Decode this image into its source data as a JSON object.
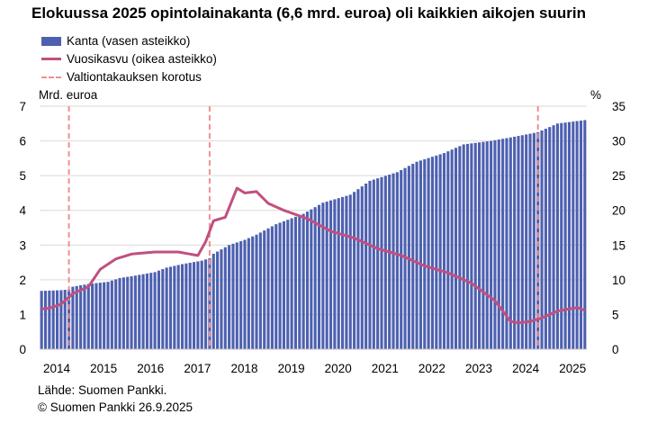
{
  "title": "Elokuussa 2025 opintolainakanta (6,6 mrd. euroa) oli kaikkien aikojen suurin",
  "legend": {
    "bars": "Kanta (vasen asteikko)",
    "line": "Vuosikasvu (oikea asteikko)",
    "dashed": "Valtiontakauksen korotus"
  },
  "left_axis_unit": "Mrd. euroa",
  "right_axis_unit": "%",
  "source": "Lähde: Suomen Pankki.",
  "copyright": "© Suomen Pankki 26.9.2025",
  "colors": {
    "bars": "#4d60b0",
    "line": "#c05080",
    "dashed": "#f09090",
    "grid": "#d9d9d9"
  },
  "chart_data": {
    "type": "bar",
    "x_start": "2014-01",
    "x_end": "2025-08",
    "x_ticks": [
      "2014",
      "2015",
      "2016",
      "2017",
      "2018",
      "2019",
      "2020",
      "2021",
      "2022",
      "2023",
      "2024",
      "2025"
    ],
    "y_left_ticks": [
      "0",
      "1",
      "2",
      "3",
      "4",
      "5",
      "6",
      "7"
    ],
    "y_right_ticks": [
      "0",
      "5",
      "10",
      "15",
      "20",
      "25",
      "30",
      "35"
    ],
    "ylim_left": [
      0,
      7
    ],
    "ylim_right": [
      0,
      35
    ],
    "grid": true,
    "series": [
      {
        "name": "Kanta (vasen asteikko)",
        "kind": "bar",
        "axis": "left",
        "anchors": [
          [
            "2014-01",
            1.68
          ],
          [
            "2014-06",
            1.7
          ],
          [
            "2014-08",
            1.72
          ],
          [
            "2014-09",
            1.8
          ],
          [
            "2015-01",
            1.88
          ],
          [
            "2015-06",
            1.94
          ],
          [
            "2015-09",
            2.05
          ],
          [
            "2016-01",
            2.12
          ],
          [
            "2016-06",
            2.22
          ],
          [
            "2016-09",
            2.35
          ],
          [
            "2017-01",
            2.45
          ],
          [
            "2017-06",
            2.55
          ],
          [
            "2017-08",
            2.62
          ],
          [
            "2017-09",
            2.75
          ],
          [
            "2018-01",
            3.0
          ],
          [
            "2018-05",
            3.15
          ],
          [
            "2018-08",
            3.3
          ],
          [
            "2019-01",
            3.6
          ],
          [
            "2019-08",
            3.9
          ],
          [
            "2020-01",
            4.22
          ],
          [
            "2020-08",
            4.45
          ],
          [
            "2021-01",
            4.85
          ],
          [
            "2021-08",
            5.1
          ],
          [
            "2022-01",
            5.4
          ],
          [
            "2022-08",
            5.65
          ],
          [
            "2023-01",
            5.9
          ],
          [
            "2023-08",
            6.0
          ],
          [
            "2024-01",
            6.1
          ],
          [
            "2024-08",
            6.25
          ],
          [
            "2025-01",
            6.5
          ],
          [
            "2025-08",
            6.6
          ]
        ]
      },
      {
        "name": "Vuosikasvu (oikea asteikko)",
        "kind": "line",
        "axis": "right",
        "anchors": [
          [
            "2014-01",
            5.8
          ],
          [
            "2014-03",
            5.9
          ],
          [
            "2014-06",
            6.5
          ],
          [
            "2014-09",
            8.0
          ],
          [
            "2015-01",
            9.0
          ],
          [
            "2015-04",
            11.5
          ],
          [
            "2015-08",
            13.0
          ],
          [
            "2015-12",
            13.7
          ],
          [
            "2016-06",
            14.0
          ],
          [
            "2016-12",
            14.0
          ],
          [
            "2017-05",
            13.5
          ],
          [
            "2017-07",
            15.5
          ],
          [
            "2017-09",
            18.5
          ],
          [
            "2017-12",
            19.0
          ],
          [
            "2018-03",
            23.2
          ],
          [
            "2018-05",
            22.5
          ],
          [
            "2018-08",
            22.7
          ],
          [
            "2018-11",
            21.0
          ],
          [
            "2019-03",
            20.0
          ],
          [
            "2019-09",
            18.8
          ],
          [
            "2020-03",
            17.0
          ],
          [
            "2020-09",
            16.0
          ],
          [
            "2021-03",
            14.5
          ],
          [
            "2021-09",
            13.5
          ],
          [
            "2022-03",
            12.0
          ],
          [
            "2022-09",
            11.0
          ],
          [
            "2023-03",
            9.5
          ],
          [
            "2023-09",
            7.0
          ],
          [
            "2024-01",
            4.0
          ],
          [
            "2024-03",
            3.8
          ],
          [
            "2024-06",
            4.0
          ],
          [
            "2024-09",
            4.5
          ],
          [
            "2025-01",
            5.5
          ],
          [
            "2025-06",
            6.0
          ],
          [
            "2025-08",
            5.6
          ]
        ]
      }
    ],
    "guarantee_increase_dates": [
      "2014-08",
      "2017-08",
      "2024-08"
    ]
  }
}
